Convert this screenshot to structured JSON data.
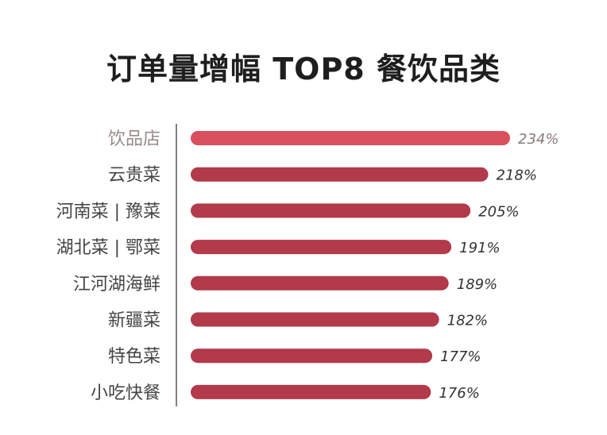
{
  "colors": {
    "bar_first": "#d9505c",
    "bar": "#b23a4a",
    "axis": "#555555"
  },
  "chart_data": {
    "type": "bar",
    "orientation": "horizontal",
    "title": "订单量增幅 TOP8 餐饮品类",
    "categories": [
      "饮品店",
      "云贵菜",
      "河南菜 | 豫菜",
      "湖北菜 | 鄂菜",
      "江河湖海鲜",
      "新疆菜",
      "特色菜",
      "小吃快餐"
    ],
    "values": [
      234,
      218,
      205,
      191,
      189,
      182,
      177,
      176
    ],
    "value_labels": [
      "234%",
      "218%",
      "205%",
      "191%",
      "189%",
      "182%",
      "177%",
      "176%"
    ],
    "unit": "%",
    "xlabel": "",
    "ylabel": "",
    "grid": false,
    "legend": "none"
  }
}
